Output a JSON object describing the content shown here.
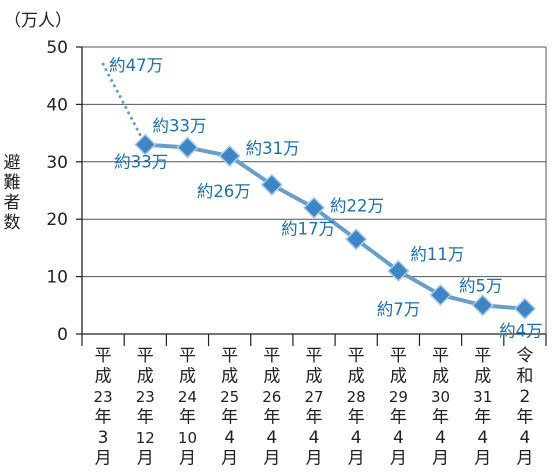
{
  "chart_data": {
    "type": "line",
    "ylabel_unit": "（万人）",
    "ylabel": "避難者数",
    "ylim": [
      0,
      50
    ],
    "yticks": [
      0,
      10,
      20,
      30,
      40,
      50
    ],
    "grid": true,
    "categories": [
      "平成23年3月",
      "平成23年12月",
      "平成24年10月",
      "平成25年4月",
      "平成26年4月",
      "平成27年4月",
      "平成28年4月",
      "平成29年4月",
      "平成30年4月",
      "平成31年4月",
      "令和2年4月"
    ],
    "category_lines": [
      [
        "平",
        "成",
        "23",
        "年",
        "3",
        "月"
      ],
      [
        "平",
        "成",
        "23",
        "年",
        "12",
        "月"
      ],
      [
        "平",
        "成",
        "24",
        "年",
        "10",
        "月"
      ],
      [
        "平",
        "成",
        "25",
        "年",
        "4",
        "月"
      ],
      [
        "平",
        "成",
        "26",
        "年",
        "4",
        "月"
      ],
      [
        "平",
        "成",
        "27",
        "年",
        "4",
        "月"
      ],
      [
        "平",
        "成",
        "28",
        "年",
        "4",
        "月"
      ],
      [
        "平",
        "成",
        "29",
        "年",
        "4",
        "月"
      ],
      [
        "平",
        "成",
        "30",
        "年",
        "4",
        "月"
      ],
      [
        "平",
        "成",
        "31",
        "年",
        "4",
        "月"
      ],
      [
        "令",
        "和",
        "2",
        "年",
        "4",
        "月"
      ]
    ],
    "series": [
      {
        "values": [
          47,
          33,
          32.5,
          31,
          26,
          22,
          16.5,
          11,
          6.8,
          5,
          4.4
        ],
        "labels": [
          "約47万",
          "約33万",
          "約33万",
          "約31万",
          "約26万",
          "約22万",
          "約17万",
          "約11万",
          "約7万",
          "約5万",
          "約4万"
        ],
        "dotted_first_segment": true
      }
    ],
    "colors": {
      "line": "#6a9ec6",
      "marker": "#3d86c3",
      "label": "#1f6eae",
      "axis": "#222222",
      "grid": "#555555"
    }
  }
}
